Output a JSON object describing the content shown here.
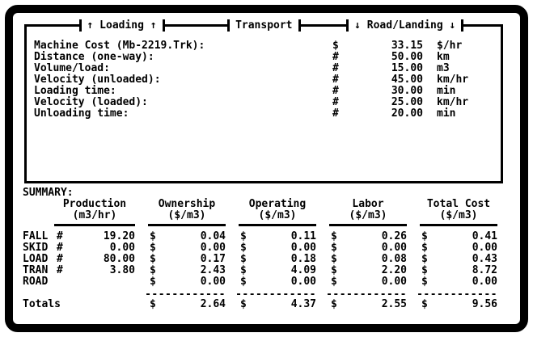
{
  "header_tabs": {
    "loading": "↑ Loading ↑",
    "transport": "Transport",
    "road_landing": "↓ Road/Landing ↓"
  },
  "parameters": {
    "rows": [
      {
        "label": "Machine Cost (Mb-2219.Trk):",
        "sym": "$",
        "value": "33.15",
        "unit": "$/hr"
      },
      {
        "label": "Distance (one-way):",
        "sym": "#",
        "value": "50.00",
        "unit": "km"
      },
      {
        "label": "Volume/load:",
        "sym": "#",
        "value": "15.00",
        "unit": "m3"
      },
      {
        "label": "Velocity (unloaded):",
        "sym": "#",
        "value": "45.00",
        "unit": "km/hr"
      },
      {
        "label": "Loading time:",
        "sym": "#",
        "value": "30.00",
        "unit": "min"
      },
      {
        "label": "Velocity (loaded):",
        "sym": "#",
        "value": "25.00",
        "unit": "km/hr"
      },
      {
        "label": "Unloading time:",
        "sym": "#",
        "value": "20.00",
        "unit": "min"
      }
    ]
  },
  "summary": {
    "title": "SUMMARY:",
    "currency_sym": "$",
    "separator": "------------",
    "columns": [
      {
        "name": "Production",
        "unit": "(m3/hr)"
      },
      {
        "name": "Ownership",
        "unit": "($/m3)"
      },
      {
        "name": "Operating",
        "unit": "($/m3)"
      },
      {
        "name": "Labor",
        "unit": "($/m3)"
      },
      {
        "name": "Total Cost",
        "unit": "($/m3)"
      }
    ],
    "rows": [
      {
        "label": "FALL",
        "prod_sym": "#",
        "production": "19.20",
        "ownership": "0.04",
        "operating": "0.11",
        "labor": "0.26",
        "total": "0.41"
      },
      {
        "label": "SKID",
        "prod_sym": "#",
        "production": "0.00",
        "ownership": "0.00",
        "operating": "0.00",
        "labor": "0.00",
        "total": "0.00"
      },
      {
        "label": "LOAD",
        "prod_sym": "#",
        "production": "80.00",
        "ownership": "0.17",
        "operating": "0.18",
        "labor": "0.08",
        "total": "0.43"
      },
      {
        "label": "TRAN",
        "prod_sym": "#",
        "production": "3.80",
        "ownership": "2.43",
        "operating": "4.09",
        "labor": "2.20",
        "total": "8.72"
      },
      {
        "label": "ROAD",
        "prod_sym": "",
        "production": "",
        "ownership": "0.00",
        "operating": "0.00",
        "labor": "0.00",
        "total": "0.00"
      }
    ],
    "totals": {
      "label": "Totals",
      "ownership": "2.64",
      "operating": "4.37",
      "labor": "2.55",
      "total": "9.56"
    }
  },
  "colors": {
    "ink": "#000000",
    "paper": "#ffffff"
  }
}
